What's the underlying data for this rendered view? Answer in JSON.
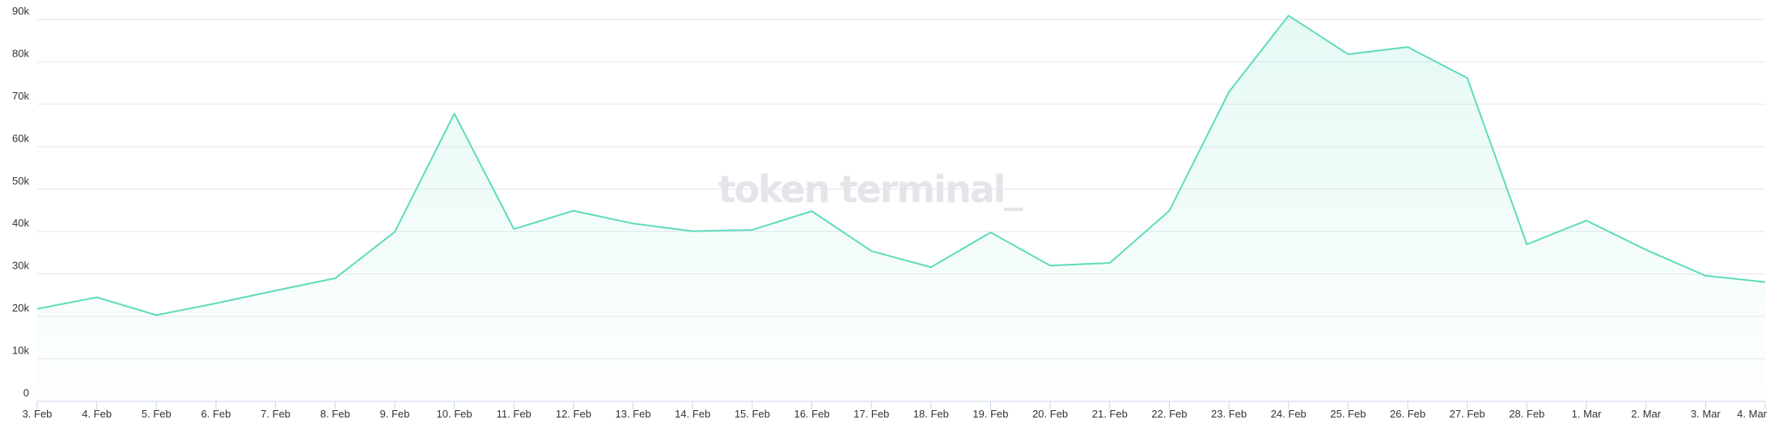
{
  "chart_data": {
    "type": "area",
    "title": "",
    "xlabel": "",
    "ylabel": "",
    "ylim": [
      0,
      90000
    ],
    "yticks": [
      0,
      10000,
      20000,
      30000,
      40000,
      50000,
      60000,
      70000,
      80000,
      90000
    ],
    "ytick_labels": [
      "0",
      "10k",
      "20k",
      "30k",
      "40k",
      "50k",
      "60k",
      "70k",
      "80k",
      "90k"
    ],
    "grid": true,
    "legend": "none",
    "watermark": "token terminal_",
    "colors": {
      "line": "#5edbbb",
      "fill": "#5edbbb",
      "grid": "#e6e6ea",
      "axis": "#ccd6eb"
    },
    "categories": [
      "3. Feb",
      "4. Feb",
      "5. Feb",
      "6. Feb",
      "7. Feb",
      "8. Feb",
      "9. Feb",
      "10. Feb",
      "11. Feb",
      "12. Feb",
      "13. Feb",
      "14. Feb",
      "15. Feb",
      "16. Feb",
      "17. Feb",
      "18. Feb",
      "19. Feb",
      "20. Feb",
      "21. Feb",
      "22. Feb",
      "23. Feb",
      "24. Feb",
      "25. Feb",
      "26. Feb",
      "27. Feb",
      "28. Feb",
      "1. Mar",
      "2. Mar",
      "3. Mar",
      "4. Mar"
    ],
    "values": [
      21800,
      24500,
      20300,
      23100,
      26100,
      29000,
      39900,
      67800,
      40600,
      44900,
      41900,
      40100,
      40400,
      44800,
      35400,
      31600,
      39800,
      32000,
      32600,
      44900,
      72900,
      90900,
      81800,
      83500,
      76200,
      37000,
      42600,
      35700,
      29600,
      28100
    ]
  }
}
